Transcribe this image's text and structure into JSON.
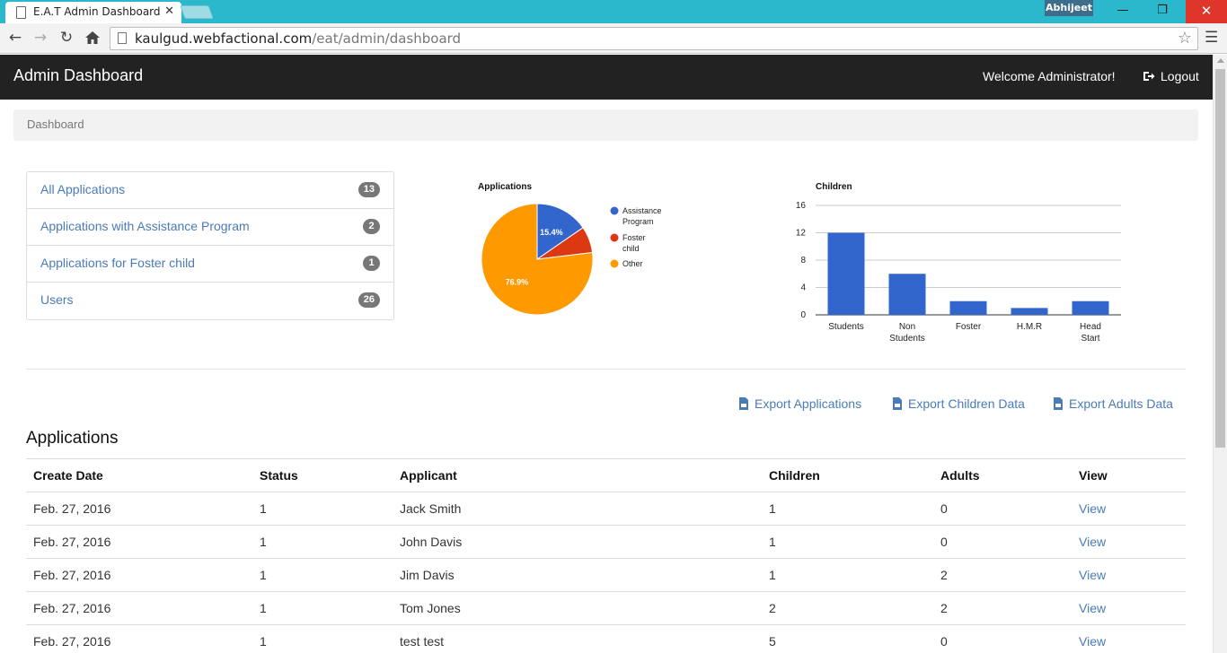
{
  "browser": {
    "tab_title": "E.A.T Admin Dashboard",
    "tab_close": "✕",
    "profile_name": "Abhijeet",
    "url_host": "kaulgud.webfactional.com",
    "url_path": "/eat/admin/dashboard",
    "minimize": "—",
    "maximize": "❐",
    "close": "✕"
  },
  "navbar": {
    "brand": "Admin Dashboard",
    "welcome": "Welcome Administrator!",
    "logout": "Logout"
  },
  "breadcrumb": {
    "current": "Dashboard"
  },
  "summary": [
    {
      "label": "All Applications",
      "count": "13"
    },
    {
      "label": "Applications with Assistance Program",
      "count": "2"
    },
    {
      "label": "Applications for Foster child",
      "count": "1"
    },
    {
      "label": "Users",
      "count": "26"
    }
  ],
  "exports": {
    "applications": "Export Applications",
    "children": "Export Children Data",
    "adults": "Export Adults Data"
  },
  "applications_section": {
    "heading": "Applications",
    "columns": [
      "Create Date",
      "Status",
      "Applicant",
      "Children",
      "Adults",
      "View"
    ],
    "rows": [
      {
        "create_date": "Feb. 27, 2016",
        "status": "1",
        "applicant": "Jack Smith",
        "children": "1",
        "adults": "0",
        "view": "View"
      },
      {
        "create_date": "Feb. 27, 2016",
        "status": "1",
        "applicant": "John Davis",
        "children": "1",
        "adults": "0",
        "view": "View"
      },
      {
        "create_date": "Feb. 27, 2016",
        "status": "1",
        "applicant": "Jim Davis",
        "children": "1",
        "adults": "2",
        "view": "View"
      },
      {
        "create_date": "Feb. 27, 2016",
        "status": "1",
        "applicant": "Tom Jones",
        "children": "2",
        "adults": "2",
        "view": "View"
      },
      {
        "create_date": "Feb. 27, 2016",
        "status": "1",
        "applicant": "test test",
        "children": "5",
        "adults": "0",
        "view": "View"
      }
    ]
  },
  "colors": {
    "link": "#4a7bb7",
    "navbar": "#222222",
    "assistance": "#3366cc",
    "foster": "#dc3912",
    "other": "#ff9900",
    "bar": "#3366cc"
  },
  "chart_data": [
    {
      "type": "pie",
      "title": "Applications",
      "legend_position": "right",
      "slices": [
        {
          "label": "Assistance Program",
          "value": 2,
          "percent_label": "15.4%",
          "color": "#3366cc"
        },
        {
          "label": "Foster child",
          "value": 1,
          "percent_label": "",
          "color": "#dc3912"
        },
        {
          "label": "Other",
          "value": 10,
          "percent_label": "76.9%",
          "color": "#ff9900"
        }
      ]
    },
    {
      "type": "bar",
      "title": "Children",
      "categories": [
        "Students",
        "Non Students",
        "Foster",
        "H.M.R",
        "Head Start"
      ],
      "values": [
        12,
        6,
        2,
        1,
        2
      ],
      "ylim": [
        0,
        16
      ],
      "yticks": [
        0,
        4,
        8,
        12,
        16
      ],
      "grid": true,
      "color": "#3366cc"
    }
  ]
}
